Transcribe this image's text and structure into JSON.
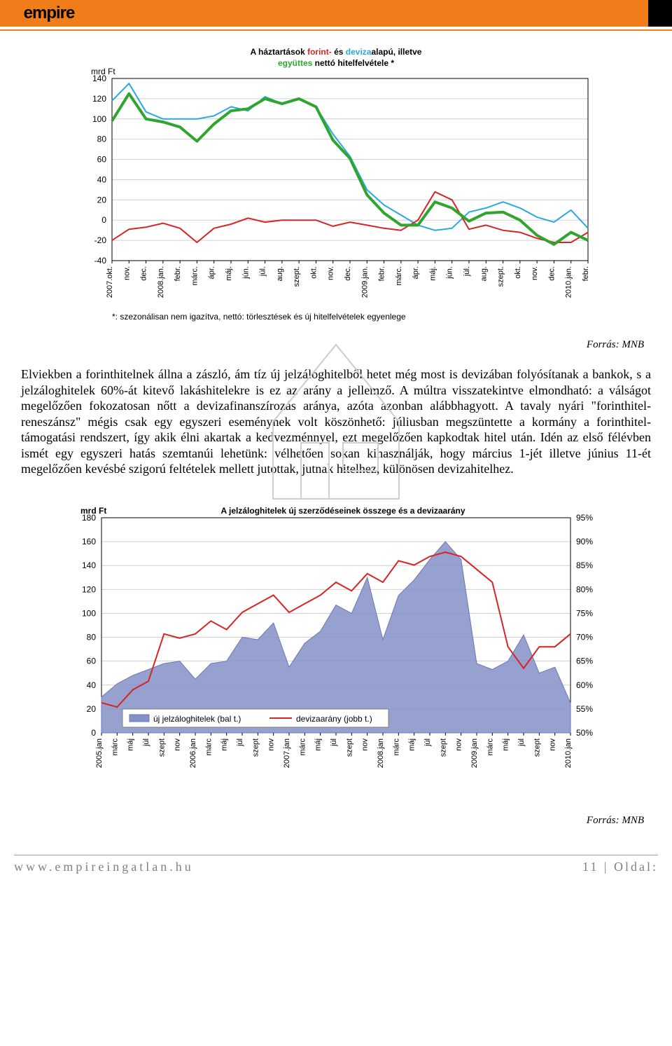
{
  "header": {
    "logo_text": "empire"
  },
  "chart1": {
    "type": "line",
    "title_pre": "A háztartások ",
    "title_forint": "forint-",
    "title_mid": " és ",
    "title_deviza": "deviza",
    "title_post1": "alapú, illetve",
    "title_line2_a": "együttes",
    "title_line2_b": " nettó hitelfelvétele *",
    "title_color_forint": "#d82424",
    "title_color_deviza": "#29a9e0",
    "title_color_egyuttes": "#2fa52f",
    "y_label": "mrd Ft",
    "y_min": -40,
    "y_max": 140,
    "y_step": 20,
    "x_labels": [
      "2007.okt.",
      "nov.",
      "dec.",
      "2008.jan.",
      "febr.",
      "márc.",
      "ápr.",
      "máj.",
      "jún.",
      "júl.",
      "aug.",
      "szept.",
      "okt.",
      "nov.",
      "dec.",
      "2009.jan.",
      "febr.",
      "márc.",
      "ápr.",
      "máj.",
      "jún.",
      "júl.",
      "aug.",
      "szept.",
      "okt.",
      "nov.",
      "dec.",
      "2010.jan.",
      "febr."
    ],
    "footnote": "*: szezonálisan nem igazítva, nettó: törlesztések és új hitelfelvételek egyenlege",
    "grid_color": "#d0d0d0",
    "axis_color": "#000000",
    "background": "#ffffff",
    "series": {
      "forint": {
        "color": "#d82424",
        "width": 2,
        "values": [
          -20,
          -9,
          -7,
          -3,
          -8,
          -22,
          -8,
          -4,
          2,
          -2,
          0,
          0,
          0,
          -6,
          -2,
          -5,
          -8,
          -10,
          0,
          28,
          20,
          -9,
          -5,
          -10,
          -12,
          -18,
          -22,
          -22,
          -12
        ]
      },
      "deviza": {
        "color": "#29a9e0",
        "width": 2,
        "values": [
          118,
          135,
          107,
          100,
          100,
          100,
          103,
          112,
          108,
          122,
          115,
          120,
          112,
          85,
          63,
          30,
          15,
          5,
          -5,
          -10,
          -8,
          8,
          12,
          18,
          12,
          3,
          -2,
          10,
          -8
        ]
      },
      "egyuttes": {
        "color": "#2fa52f",
        "width": 4,
        "values": [
          98,
          125,
          100,
          97,
          92,
          78,
          95,
          108,
          110,
          120,
          115,
          120,
          112,
          79,
          61,
          25,
          7,
          -5,
          -5,
          18,
          12,
          -1,
          7,
          8,
          0,
          -15,
          -24,
          -12,
          -20
        ]
      }
    }
  },
  "source1": "Forrás: MNB",
  "body_paragraph": "Elviekben a forinthitelnek állna a zászló, ám tíz új jelzáloghitelből hetet még most is devizában folyósítanak a bankok, s a jelzáloghitelek 60%-át kitevő lakáshitelekre is ez az arány a jellemző. A múltra visszatekintve elmondható: a válságot megelőzően fokozatosan nőtt a devizafinanszírozás aránya, azóta azonban alábbhagyott. A tavaly nyári \"forinthitel-reneszánsz\" mégis csak egy egyszeri eseménynek volt köszönhető: júliusban megszüntette a kormány a forinthitel-támogatási rendszert, így akik élni akartak a kedvezménnyel, ezt megelőzően kapkodtak hitel után. Idén az első félévben ismét egy egyszeri hatás szemtanúi lehetünk: vélhetően sokan kihasználják, hogy március 1-jét illetve június 11-ét megelőzően kevésbé szigorú feltételek mellett jutottak, jutnak hitelhez, különösen devizahitelhez.",
  "chart2": {
    "type": "combo",
    "title": "A jelzáloghitelek új szerződéseinek összege és a devizaarány",
    "y_label": "mrd Ft",
    "y_left_min": 0,
    "y_left_max": 180,
    "y_left_step": 20,
    "y_right_min": 50,
    "y_right_max": 100,
    "y_right_step": 5,
    "y_right_suffix": "%",
    "grid_color": "#d0d0d0",
    "axis_color": "#000000",
    "area_fill": "#8590c8",
    "area_stroke": "#6a77b8",
    "line_color": "#d82424",
    "line_width": 2,
    "legend_area": "új jelzáloghitelek (bal t.)",
    "legend_line": "devizaarány (jobb t.)",
    "x_labels": [
      "2005.jan",
      "márc",
      "máj",
      "júl",
      "szept",
      "nov",
      "2006.jan",
      "márc",
      "máj",
      "júl",
      "szept",
      "nov",
      "2007.jan",
      "márc",
      "máj",
      "júl",
      "szept",
      "nov",
      "2008.jan",
      "márc",
      "máj",
      "júl",
      "szept",
      "nov",
      "2009.jan",
      "márc",
      "máj",
      "júl",
      "szept",
      "nov",
      "2010.jan"
    ],
    "area_values": [
      30,
      41,
      48,
      53,
      58,
      60,
      45,
      58,
      60,
      80,
      78,
      92,
      55,
      75,
      85,
      107,
      100,
      130,
      78,
      115,
      128,
      145,
      160,
      145,
      58,
      53,
      60,
      82,
      50,
      55,
      25
    ],
    "line_values": [
      57,
      56,
      60,
      62,
      73,
      72,
      73,
      76,
      74,
      78,
      80,
      82,
      78,
      80,
      82,
      85,
      83,
      87,
      85,
      90,
      89,
      91,
      92,
      91,
      88,
      85,
      70,
      65,
      70,
      70,
      73
    ]
  },
  "source2": "Forrás: MNB",
  "footer": {
    "url": "www.empireingatlan.hu",
    "page_num": "11",
    "page_label": "Oldal:"
  }
}
